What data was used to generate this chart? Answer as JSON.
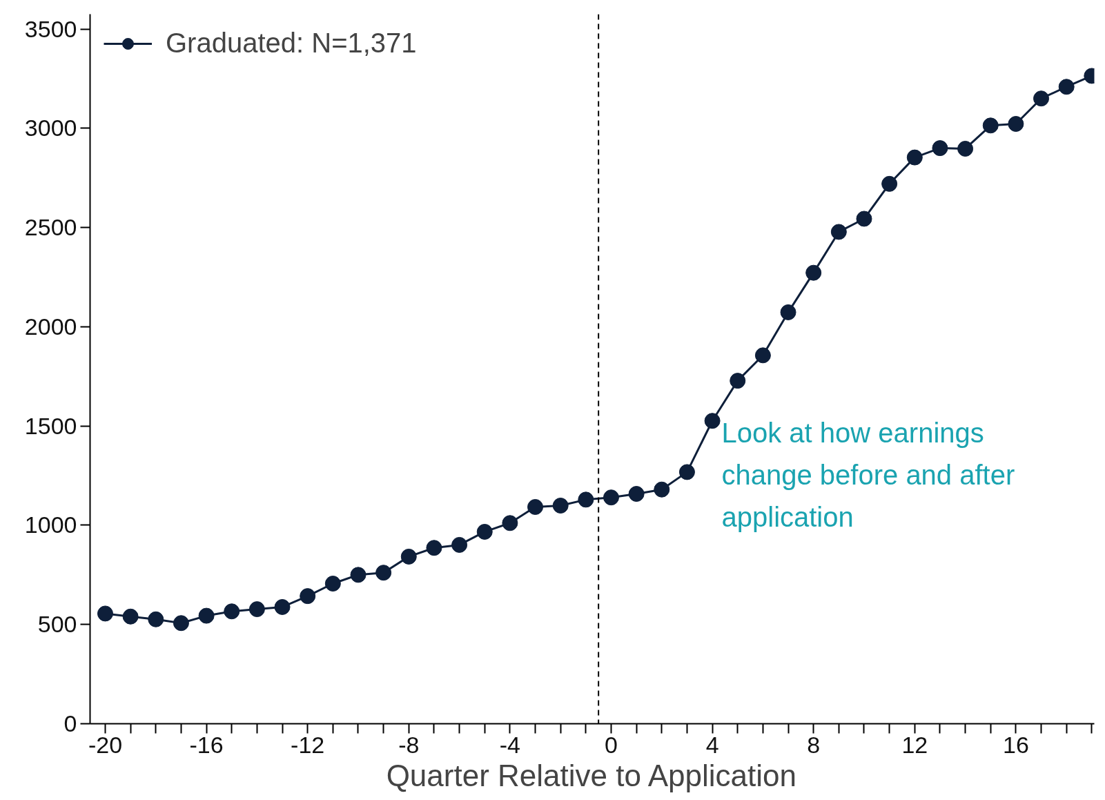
{
  "chart_data": {
    "type": "line",
    "xlabel": "Quarter Relative to Application",
    "x": [
      -20,
      -19,
      -18,
      -17,
      -16,
      -15,
      -14,
      -13,
      -12,
      -11,
      -10,
      -9,
      -8,
      -7,
      -6,
      -5,
      -4,
      -3,
      -2,
      -1,
      0,
      1,
      2,
      3,
      4,
      5,
      6,
      7,
      8,
      9,
      10,
      11,
      12,
      13,
      14,
      15,
      16,
      17,
      18,
      19
    ],
    "series": [
      {
        "name": "Graduated: N=1,371",
        "color": "#0e1f3a",
        "values": [
          555,
          540,
          526,
          507,
          544,
          566,
          577,
          588,
          643,
          706,
          750,
          761,
          842,
          886,
          901,
          967,
          1011,
          1092,
          1099,
          1129,
          1140,
          1158,
          1180,
          1268,
          1526,
          1728,
          1856,
          2073,
          2272,
          2478,
          2544,
          2720,
          2853,
          2900,
          2897,
          3014,
          3022,
          3150,
          3209,
          3264
        ]
      }
    ],
    "xlim": [
      -20.6,
      19.1
    ],
    "ylim": [
      0,
      3575
    ],
    "xticks": [
      -20,
      {
        "value": -19,
        "label": null
      },
      {
        "value": -18,
        "label": null
      },
      {
        "value": -17,
        "label": null
      },
      -16,
      {
        "value": -15,
        "label": null
      },
      {
        "value": -14,
        "label": null
      },
      {
        "value": -13,
        "label": null
      },
      -12,
      {
        "value": -11,
        "label": null
      },
      {
        "value": -10,
        "label": null
      },
      {
        "value": -9,
        "label": null
      },
      -8,
      {
        "value": -7,
        "label": null
      },
      {
        "value": -6,
        "label": null
      },
      {
        "value": -5,
        "label": null
      },
      -4,
      {
        "value": -3,
        "label": null
      },
      {
        "value": -2,
        "label": null
      },
      {
        "value": -1,
        "label": null
      },
      0,
      {
        "value": 1,
        "label": null
      },
      {
        "value": 2,
        "label": null
      },
      {
        "value": 3,
        "label": null
      },
      4,
      {
        "value": 5,
        "label": null
      },
      {
        "value": 6,
        "label": null
      },
      {
        "value": 7,
        "label": null
      },
      8,
      {
        "value": 9,
        "label": null
      },
      {
        "value": 10,
        "label": null
      },
      {
        "value": 11,
        "label": null
      },
      12,
      {
        "value": 13,
        "label": null
      },
      {
        "value": 14,
        "label": null
      },
      {
        "value": 15,
        "label": null
      },
      16,
      {
        "value": 17,
        "label": null
      },
      {
        "value": 18,
        "label": null
      },
      {
        "value": 19,
        "label": null
      }
    ],
    "yticks": [
      0,
      500,
      1000,
      1500,
      2000,
      2500,
      3000,
      3500
    ],
    "ref_lines": [
      {
        "axis": "x",
        "value": -0.5,
        "label": null,
        "color": "#000000",
        "line_style": "dashed"
      }
    ],
    "annotations": [
      "Look at how earnings change before and after application"
    ],
    "grid": false,
    "legend": "top left",
    "marker": "circle",
    "line_style": "solid"
  }
}
